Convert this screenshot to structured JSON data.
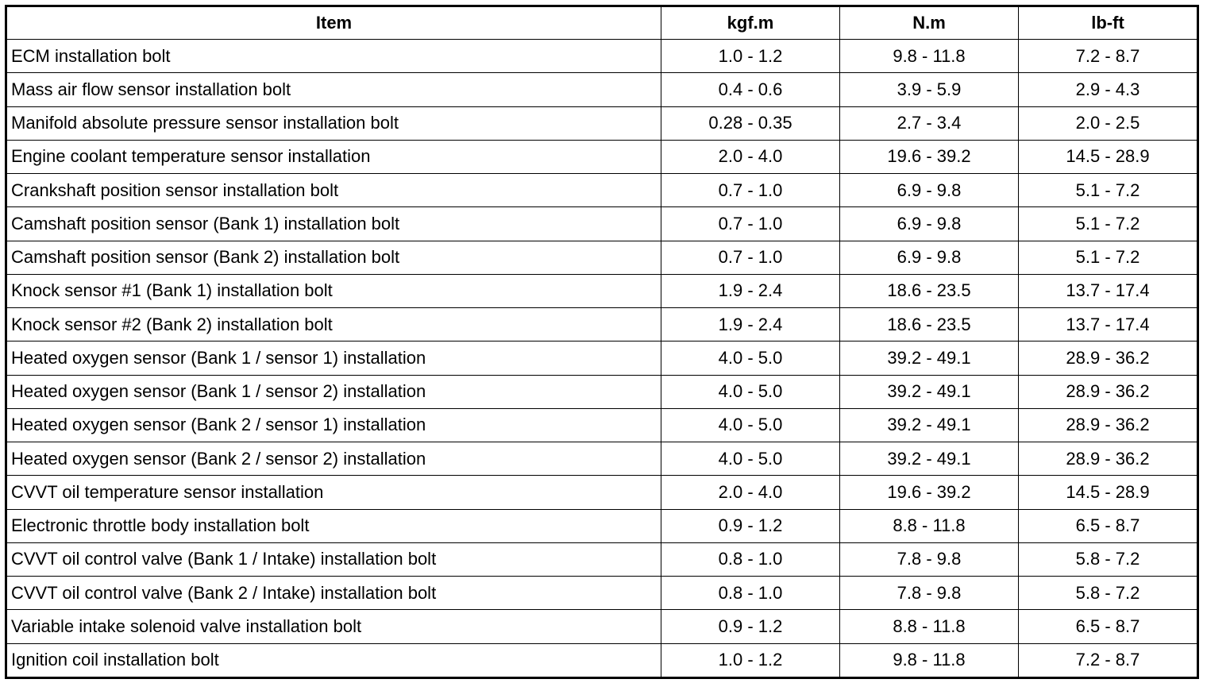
{
  "table": {
    "header": [
      "Item",
      "kgf.m",
      "N.m",
      "lb-ft"
    ],
    "rows": [
      [
        "ECM installation bolt",
        "1.0 - 1.2",
        "9.8 - 11.8",
        "7.2 - 8.7"
      ],
      [
        "Mass air flow sensor installation bolt",
        "0.4 - 0.6",
        "3.9 - 5.9",
        "2.9 - 4.3"
      ],
      [
        "Manifold absolute pressure sensor installation bolt",
        "0.28 - 0.35",
        "2.7 - 3.4",
        "2.0 - 2.5"
      ],
      [
        "Engine coolant temperature sensor installation",
        "2.0 - 4.0",
        "19.6 - 39.2",
        "14.5 - 28.9"
      ],
      [
        "Crankshaft position sensor installation bolt",
        "0.7 - 1.0",
        "6.9 - 9.8",
        "5.1 - 7.2"
      ],
      [
        "Camshaft position sensor (Bank 1) installation bolt",
        "0.7 - 1.0",
        "6.9 - 9.8",
        "5.1 - 7.2"
      ],
      [
        "Camshaft position sensor (Bank 2) installation bolt",
        "0.7 - 1.0",
        "6.9 - 9.8",
        "5.1 - 7.2"
      ],
      [
        "Knock sensor #1 (Bank 1) installation bolt",
        "1.9 - 2.4",
        "18.6 - 23.5",
        "13.7 - 17.4"
      ],
      [
        "Knock sensor #2 (Bank 2) installation bolt",
        "1.9 - 2.4",
        "18.6 - 23.5",
        "13.7 - 17.4"
      ],
      [
        "Heated oxygen sensor (Bank 1 / sensor 1) installation",
        "4.0 - 5.0",
        "39.2 - 49.1",
        "28.9 - 36.2"
      ],
      [
        "Heated oxygen sensor (Bank 1 / sensor 2) installation",
        "4.0 - 5.0",
        "39.2 - 49.1",
        "28.9 - 36.2"
      ],
      [
        "Heated oxygen sensor (Bank 2 / sensor 1) installation",
        "4.0 - 5.0",
        "39.2 - 49.1",
        "28.9 - 36.2"
      ],
      [
        "Heated oxygen sensor (Bank 2 / sensor 2) installation",
        "4.0 - 5.0",
        "39.2 - 49.1",
        "28.9 - 36.2"
      ],
      [
        "CVVT oil temperature sensor installation",
        "2.0 - 4.0",
        "19.6 - 39.2",
        "14.5 - 28.9"
      ],
      [
        "Electronic throttle body installation bolt",
        "0.9 - 1.2",
        "8.8 - 11.8",
        "6.5 - 8.7"
      ],
      [
        "CVVT oil control valve (Bank 1 / Intake) installation bolt",
        "0.8 - 1.0",
        "7.8 - 9.8",
        "5.8 - 7.2"
      ],
      [
        "CVVT oil control valve (Bank 2 / Intake) installation bolt",
        "0.8 - 1.0",
        "7.8 - 9.8",
        "5.8 - 7.2"
      ],
      [
        "Variable intake solenoid valve installation bolt",
        "0.9 - 1.2",
        "8.8 - 11.8",
        "6.5 - 8.7"
      ],
      [
        "Ignition coil installation bolt",
        "1.0 - 1.2",
        "9.8 - 11.8",
        "7.2 - 8.7"
      ]
    ]
  }
}
